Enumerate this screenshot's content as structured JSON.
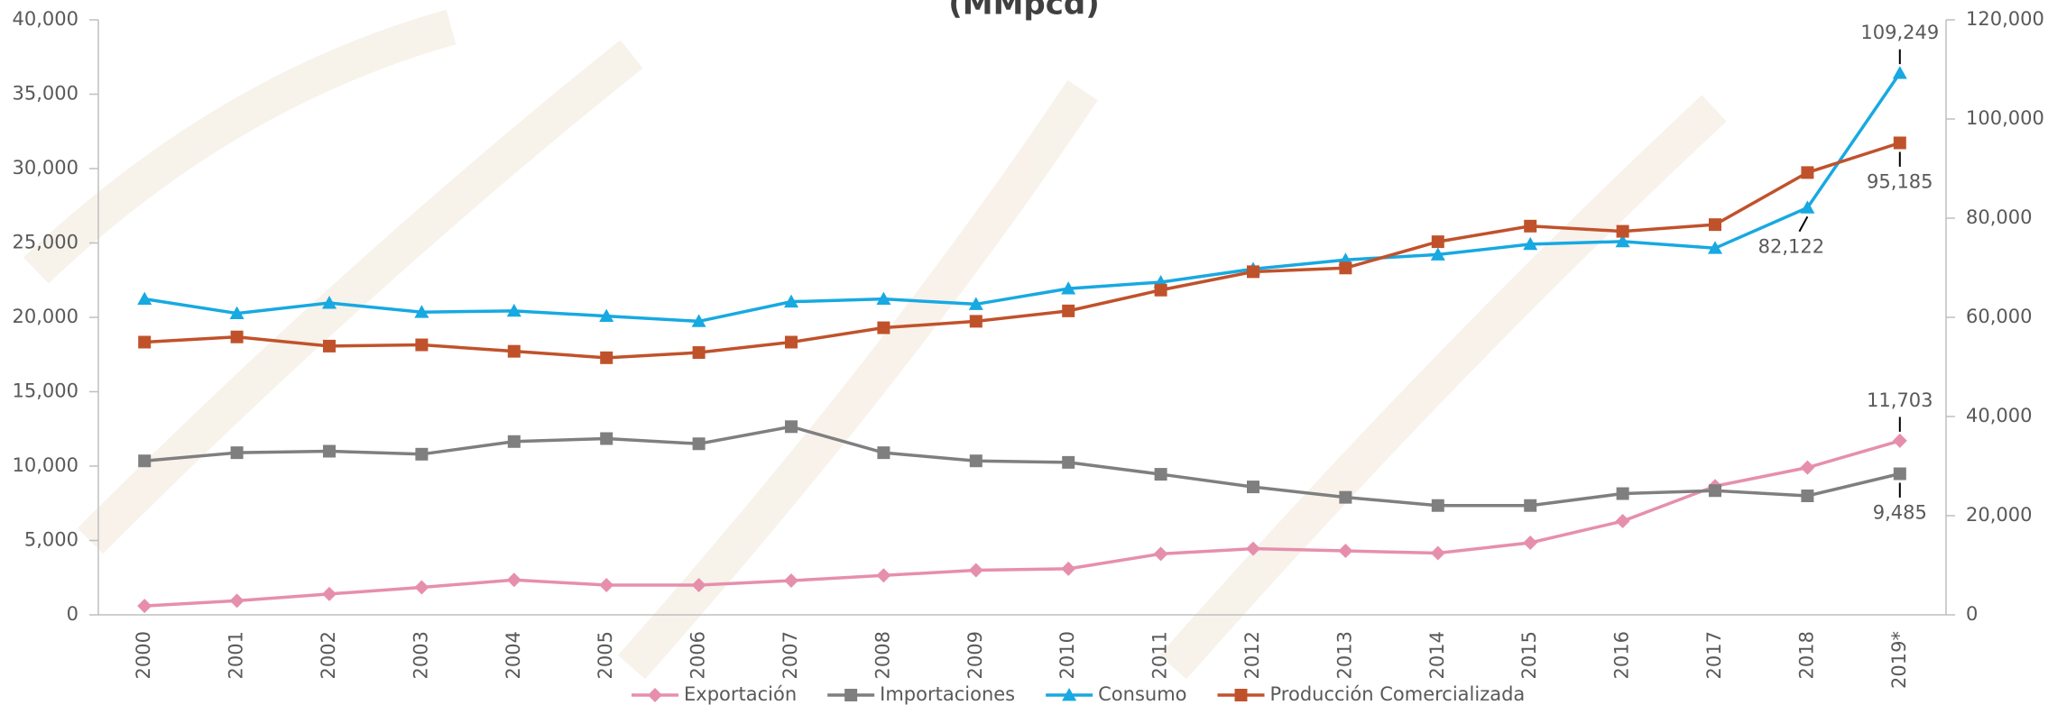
{
  "chart_data": {
    "type": "line",
    "title": "(MMpcd)",
    "categories": [
      "2000",
      "2001",
      "2002",
      "2003",
      "2004",
      "2005",
      "2006",
      "2007",
      "2008",
      "2009",
      "2010",
      "2011",
      "2012",
      "2013",
      "2014",
      "2015",
      "2016",
      "2017",
      "2018",
      "2019*"
    ],
    "ylim": [
      0,
      40000
    ],
    "yticks": [
      0,
      {
        "value": 5000,
        "label": "5,000"
      },
      {
        "value": 10000,
        "label": "10,000"
      },
      {
        "value": 15000,
        "label": "15,000"
      },
      {
        "value": 20000,
        "label": "20,000"
      },
      {
        "value": 25000,
        "label": "25,000"
      },
      {
        "value": 30000,
        "label": "30,000"
      },
      {
        "value": 35000,
        "label": "35,000"
      },
      {
        "value": 40000,
        "label": "40,000"
      }
    ],
    "y2lim": [
      0,
      120000
    ],
    "y2ticks": [
      0,
      {
        "value": 20000,
        "label": "20,000"
      },
      {
        "value": 40000,
        "label": "40,000"
      },
      {
        "value": 60000,
        "label": "60,000"
      },
      {
        "value": 80000,
        "label": "80,000"
      },
      {
        "value": 100000,
        "label": "100,000"
      },
      {
        "value": 120000,
        "label": "120,000"
      }
    ],
    "legend": "bottom",
    "series": [
      {
        "name": "Exportación",
        "color": "#e68fac",
        "marker": "diamond",
        "values": [
          600,
          950,
          1400,
          1850,
          2350,
          2000,
          2000,
          2300,
          2650,
          3000,
          3100,
          4100,
          4450,
          4300,
          4150,
          4850,
          6300,
          8650,
          9900,
          11703
        ],
        "value_labels": [
          null,
          null,
          null,
          null,
          null,
          null,
          null,
          null,
          null,
          null,
          null,
          null,
          null,
          null,
          null,
          null,
          null,
          null,
          null,
          "11,703"
        ]
      },
      {
        "name": "Importaciones",
        "color": "#7f7f7f",
        "marker": "square",
        "values": [
          10350,
          10900,
          11000,
          10800,
          11650,
          11850,
          11500,
          12650,
          10900,
          10350,
          10250,
          9450,
          8600,
          7900,
          7350,
          7350,
          8150,
          8350,
          8000,
          9485
        ],
        "value_labels": [
          null,
          null,
          null,
          null,
          null,
          null,
          null,
          null,
          null,
          null,
          null,
          null,
          null,
          null,
          null,
          null,
          null,
          null,
          null,
          "9,485"
        ]
      },
      {
        "name": "Consumo",
        "color": "#17a9e1",
        "marker": "triangle",
        "axis": "y2",
        "values": [
          63700,
          60800,
          62900,
          61050,
          61300,
          60250,
          59200,
          63150,
          63700,
          62650,
          65800,
          67100,
          69750,
          71600,
          72650,
          74750,
          75300,
          73950,
          82122,
          109249
        ],
        "value_labels": [
          null,
          null,
          null,
          null,
          null,
          null,
          null,
          null,
          null,
          null,
          null,
          null,
          null,
          null,
          null,
          null,
          null,
          null,
          "82,122",
          "109,249"
        ]
      },
      {
        "name": "Producción Comercializada",
        "color": "#c0522b",
        "marker": "square",
        "axis": "y2",
        "values": [
          55000,
          56050,
          54200,
          54450,
          53150,
          51850,
          52900,
          55000,
          57900,
          59200,
          61300,
          65500,
          69200,
          69950,
          75250,
          78400,
          77350,
          78700,
          89200,
          95185
        ],
        "value_labels": [
          null,
          null,
          null,
          null,
          null,
          null,
          null,
          null,
          null,
          null,
          null,
          null,
          null,
          null,
          null,
          null,
          null,
          null,
          null,
          "95,185"
        ]
      }
    ]
  }
}
